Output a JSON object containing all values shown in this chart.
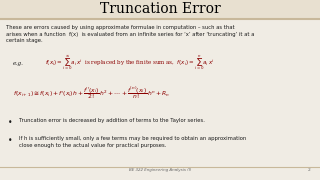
{
  "title": "Truncation Error",
  "bg_color": "#f0ece4",
  "header_bg": "#e8e0d0",
  "title_color": "#000000",
  "title_fontsize": 10,
  "body_text1": "These are errors caused by using approximate formulae in computation – such as that\narises when a function  f(x)  is evaluated from an infinite series for ‘x’ after ‘truncating’ it at a\ncertain stage.",
  "eg_label": "e.g.",
  "bullet1": "Truncation error is decreased by addition of terms to the Taylor series.",
  "bullet2": "If h is sufficiently small, only a few terms may be required to obtain an approximation\nclose enough to the actual value for practical purposes.",
  "footer": "BE 322 Engineering Analysis (I)",
  "page_num": "2",
  "line_color": "#c8b89a",
  "text_color": "#1a1a1a",
  "formula_color": "#8b0000",
  "footer_color": "#666666"
}
